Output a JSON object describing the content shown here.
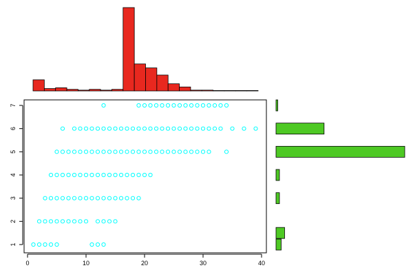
{
  "chart_data": {
    "type": "scatter",
    "title": "",
    "xlabel": "",
    "ylabel": "",
    "xlim": [
      0,
      40
    ],
    "ylim": [
      1,
      7
    ],
    "x_ticks": [
      "0",
      "10",
      "20",
      "30",
      "40"
    ],
    "y_ticks": [
      "1",
      "2",
      "3",
      "4",
      "5",
      "6",
      "7"
    ],
    "grid": false,
    "legend": "none",
    "series": [
      {
        "marker": "open-circle",
        "color": "#00ffff",
        "rows": [
          {
            "y": 1,
            "x": [
              1,
              2,
              3,
              4,
              5,
              11,
              12,
              13
            ]
          },
          {
            "y": 2,
            "x": [
              2,
              3,
              4,
              5,
              6,
              7,
              8,
              9,
              10,
              12,
              13,
              14,
              15
            ]
          },
          {
            "y": 3,
            "x": [
              3,
              4,
              5,
              6,
              7,
              8,
              9,
              10,
              11,
              12,
              13,
              14,
              15,
              16,
              17,
              18,
              19
            ]
          },
          {
            "y": 4,
            "x": [
              4,
              5,
              6,
              7,
              8,
              9,
              10,
              11,
              12,
              13,
              14,
              15,
              16,
              17,
              18,
              19,
              20,
              21
            ]
          },
          {
            "y": 5,
            "x": [
              5,
              6,
              7,
              8,
              9,
              10,
              11,
              12,
              13,
              14,
              15,
              16,
              17,
              18,
              19,
              20,
              21,
              22,
              23,
              24,
              25,
              26,
              27,
              28,
              29,
              30,
              31,
              34
            ]
          },
          {
            "y": 6,
            "x": [
              6,
              8,
              9,
              10,
              11,
              12,
              13,
              14,
              15,
              16,
              17,
              18,
              19,
              20,
              21,
              22,
              23,
              24,
              25,
              26,
              27,
              28,
              29,
              30,
              31,
              32,
              33,
              35,
              37,
              39
            ]
          },
          {
            "y": 7,
            "x": [
              13,
              19,
              20,
              21,
              22,
              23,
              24,
              25,
              26,
              27,
              28,
              29,
              30,
              31,
              32,
              33,
              34
            ]
          }
        ]
      }
    ],
    "top_histogram": {
      "type": "bar",
      "color": "#e8281f",
      "range": [
        0,
        40
      ],
      "bin_width": 2,
      "frequencies": [
        14,
        3,
        4,
        2,
        1,
        2,
        1,
        2,
        105,
        34,
        29,
        20,
        9,
        5,
        1,
        1,
        0.5,
        0.5,
        0.5,
        0.5
      ]
    },
    "right_histogram": {
      "type": "bar",
      "orientation": "horizontal",
      "color": "#4ec924",
      "bars": [
        {
          "y": 1,
          "value": 3
        },
        {
          "y": 1.5,
          "value": 5
        },
        {
          "y": 3,
          "value": 2
        },
        {
          "y": 4,
          "value": 2
        },
        {
          "y": 5,
          "value": 75
        },
        {
          "y": 6,
          "value": 28
        },
        {
          "y": 7,
          "value": 1
        }
      ],
      "value_max": 75
    }
  }
}
